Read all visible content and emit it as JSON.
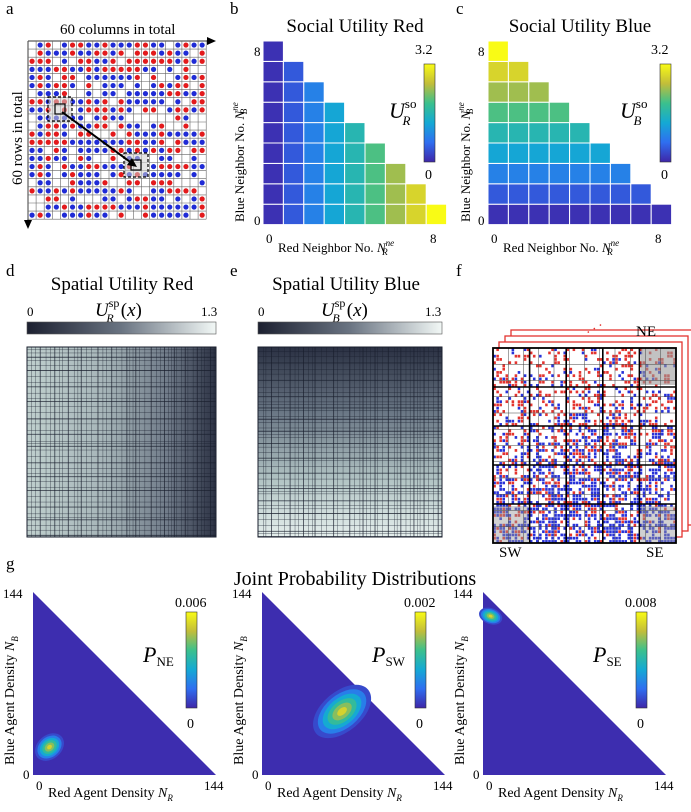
{
  "figure_labels": {
    "a": "a",
    "b": "b",
    "c": "c",
    "d": "d",
    "e": "e",
    "f": "f",
    "g": "g"
  },
  "grid_panel": {
    "columns_label": "60 columns in total",
    "rows_label": "60 rows in total"
  },
  "quadrant_panel": {
    "ne": "NE",
    "sw": "SW",
    "se": "SE"
  },
  "chart_data": [
    {
      "id": "social-red",
      "type": "heatmap",
      "title": "Social Utility Red",
      "xlabel": "Red Neighbor No. N_R^ne",
      "ylabel": "Blue Neighbor No. N_B^ne",
      "xticks": [
        "0",
        "8"
      ],
      "yticks": [
        "0",
        "8"
      ],
      "colorbar": {
        "label": "U_R^so",
        "min": 0,
        "max": 3.2,
        "ticks": [
          "3.2",
          "0"
        ]
      },
      "cell_rule": "value depends on red neighbor count; upper-left triangle N_R + N_B <= 8",
      "values_by_red_count": [
        0.1,
        0.45,
        0.85,
        1.25,
        1.6,
        2.0,
        2.4,
        2.8,
        3.2
      ]
    },
    {
      "id": "social-blue",
      "type": "heatmap",
      "title": "Social Utility Blue",
      "xlabel": "Red Neighbor No. N_R^ne",
      "ylabel": "Blue Neighbor No. N_B^ne",
      "xticks": [
        "0",
        "8"
      ],
      "yticks": [
        "0",
        "8"
      ],
      "colorbar": {
        "label": "U_B^so",
        "min": 0,
        "max": 3.2,
        "ticks": [
          "3.2",
          "0"
        ]
      },
      "cell_rule": "value depends on blue neighbor count; upper-left triangle N_R + N_B <= 8",
      "values_by_blue_count": [
        0.1,
        0.45,
        0.85,
        1.25,
        1.6,
        2.0,
        2.4,
        2.8,
        3.2
      ]
    },
    {
      "id": "spatial-red",
      "type": "heatmap",
      "title": "Spatial Utility Red",
      "colorbar": {
        "label": "U_R^sp(x)",
        "min": 0,
        "max": 1.3,
        "ticks": [
          "0",
          "1.3"
        ]
      },
      "gradient": "high on the left, low on the right"
    },
    {
      "id": "spatial-blue",
      "type": "heatmap",
      "title": "Spatial Utility Blue",
      "colorbar": {
        "label": "U_B^sp(x)",
        "min": 0,
        "max": 1.3,
        "ticks": [
          "0",
          "1.3"
        ]
      },
      "gradient": "high at the bottom, low at the top"
    },
    {
      "id": "joint-prob",
      "type": "heatmap",
      "title": "Joint Probability Distributions",
      "xlabel": "Red Agent Density N_R",
      "ylabel": "Blue Agent Density N_B",
      "axis_range": [
        0,
        144
      ],
      "panels": [
        {
          "name": "P_NE",
          "sub": "NE",
          "colorbar_max": "0.006",
          "colorbar_min": "0",
          "peak": {
            "NR": 13,
            "NB": 22
          }
        },
        {
          "name": "P_SW",
          "sub": "SW",
          "colorbar_max": "0.002",
          "colorbar_min": "0",
          "peak": {
            "NR": 63,
            "NB": 50
          }
        },
        {
          "name": "P_SE",
          "sub": "SE",
          "colorbar_max": "0.008",
          "colorbar_min": "0",
          "peak": {
            "NR": 6,
            "NB": 125
          }
        }
      ]
    }
  ]
}
